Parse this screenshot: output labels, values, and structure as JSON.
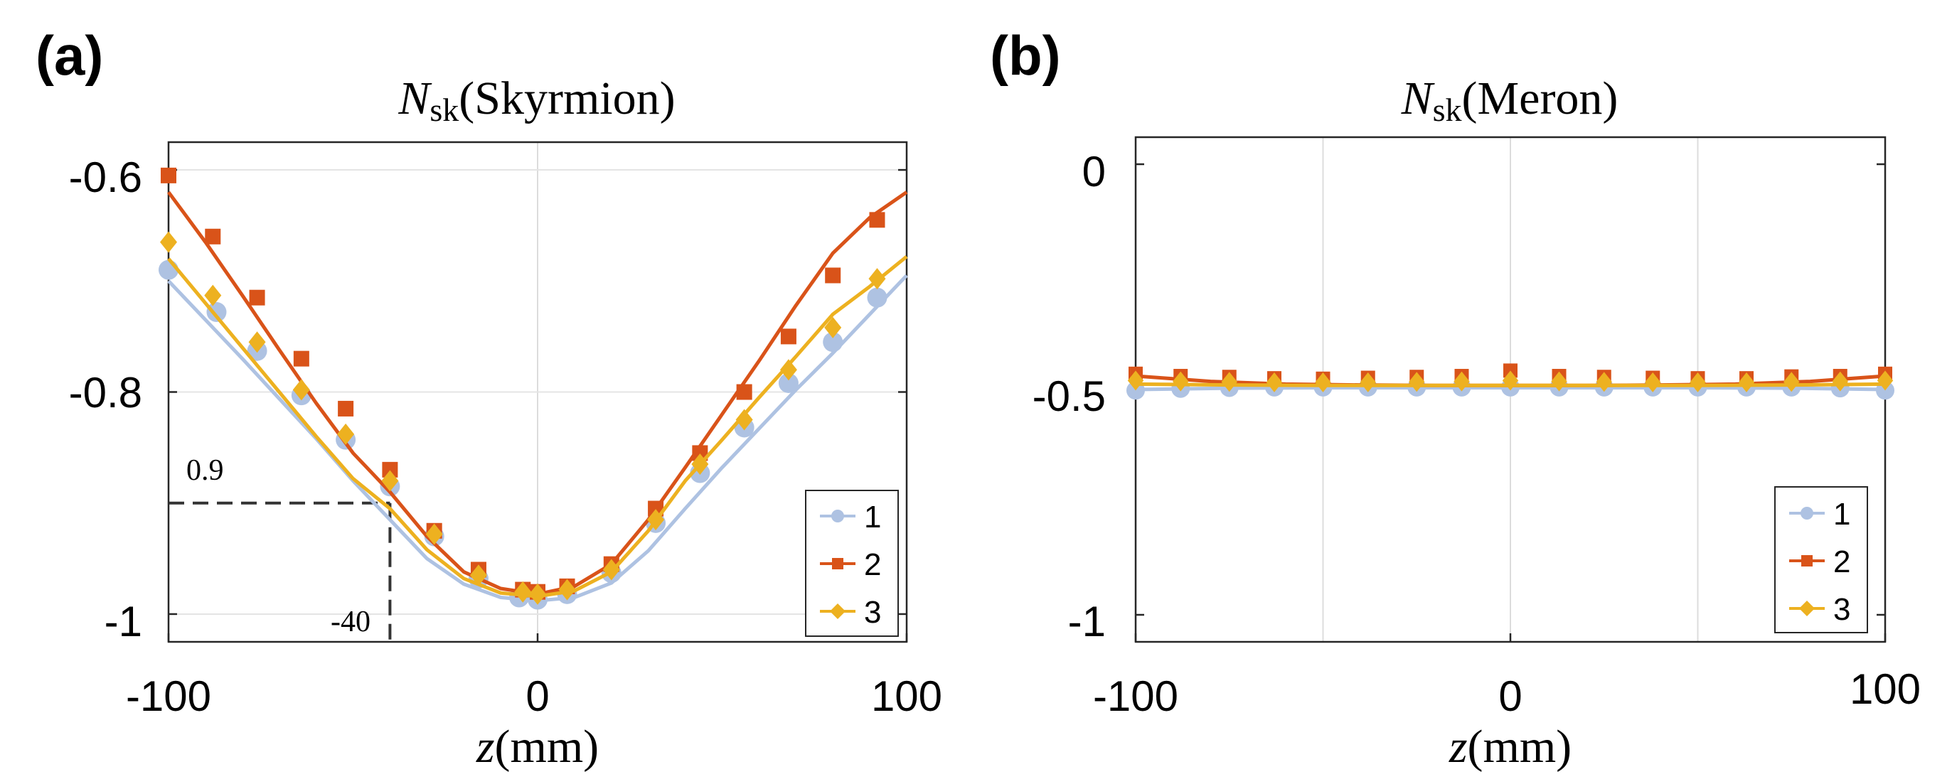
{
  "chart_data": [
    {
      "panel_label": "(a)",
      "type": "line",
      "title_symbol": "N",
      "title_subscript": "sk",
      "title_paren": "(Skyrmion)",
      "xlabel_var": "z",
      "xlabel_unit": "(mm)",
      "xlim": [
        -100,
        100
      ],
      "ylim": [
        -1.025,
        -0.575
      ],
      "xticks": [
        -100,
        0,
        100
      ],
      "xtick_labels": [
        "-100",
        "0",
        "100"
      ],
      "yticks": [
        -0.6,
        -0.8,
        -1.0
      ],
      "ytick_labels": [
        "-0.6",
        "-0.8",
        "-1"
      ],
      "grid": true,
      "legend_position": "bottom-right",
      "annotations": {
        "y_value": -0.9,
        "y_label": "0.9",
        "x_value": -40,
        "x_label": "-40"
      },
      "series": [
        {
          "name": "1",
          "color": "#aec2e2",
          "marker": "circle",
          "marker_x": [
            -100,
            -87,
            -76,
            -64,
            -52,
            -40,
            -28,
            -16,
            -5,
            0,
            8,
            20,
            32,
            44,
            56,
            68,
            80,
            92
          ],
          "marker_y": [
            -0.69,
            -0.728,
            -0.763,
            -0.803,
            -0.843,
            -0.885,
            -0.93,
            -0.968,
            -0.985,
            -0.987,
            -0.982,
            -0.963,
            -0.918,
            -0.873,
            -0.832,
            -0.792,
            -0.755,
            -0.715
          ],
          "line_x": [
            -100,
            -90,
            -80,
            -70,
            -60,
            -50,
            -40,
            -30,
            -20,
            -10,
            0,
            10,
            20,
            30,
            40,
            50,
            60,
            70,
            80,
            90,
            100
          ],
          "line_y": [
            -0.7,
            -0.735,
            -0.77,
            -0.806,
            -0.842,
            -0.88,
            -0.915,
            -0.95,
            -0.973,
            -0.985,
            -0.988,
            -0.985,
            -0.972,
            -0.943,
            -0.905,
            -0.868,
            -0.833,
            -0.798,
            -0.765,
            -0.73,
            -0.695
          ]
        },
        {
          "name": "2",
          "color": "#d95319",
          "marker": "square",
          "marker_x": [
            -100,
            -88,
            -76,
            -64,
            -52,
            -40,
            -28,
            -16,
            -4,
            0,
            8,
            20,
            32,
            44,
            56,
            68,
            80,
            92
          ],
          "marker_y": [
            -0.605,
            -0.66,
            -0.715,
            -0.77,
            -0.815,
            -0.87,
            -0.925,
            -0.96,
            -0.978,
            -0.98,
            -0.975,
            -0.955,
            -0.905,
            -0.855,
            -0.8,
            -0.75,
            -0.695,
            -0.645
          ],
          "line_x": [
            -100,
            -90,
            -80,
            -70,
            -60,
            -50,
            -40,
            -30,
            -20,
            -10,
            0,
            10,
            20,
            30,
            40,
            50,
            60,
            70,
            80,
            90,
            100
          ],
          "line_y": [
            -0.62,
            -0.665,
            -0.713,
            -0.762,
            -0.81,
            -0.855,
            -0.89,
            -0.93,
            -0.962,
            -0.977,
            -0.982,
            -0.975,
            -0.955,
            -0.915,
            -0.868,
            -0.82,
            -0.772,
            -0.722,
            -0.675,
            -0.643,
            -0.62
          ]
        },
        {
          "name": "3",
          "color": "#edb120",
          "marker": "diamond",
          "marker_x": [
            -100,
            -88,
            -76,
            -64,
            -52,
            -40,
            -28,
            -16,
            -4,
            0,
            8,
            20,
            32,
            44,
            56,
            68,
            80,
            92
          ],
          "marker_y": [
            -0.665,
            -0.713,
            -0.755,
            -0.798,
            -0.838,
            -0.88,
            -0.928,
            -0.965,
            -0.98,
            -0.982,
            -0.978,
            -0.96,
            -0.915,
            -0.865,
            -0.825,
            -0.78,
            -0.742,
            -0.698
          ],
          "line_x": [
            -100,
            -90,
            -80,
            -70,
            -60,
            -50,
            -40,
            -30,
            -20,
            -10,
            0,
            10,
            20,
            30,
            40,
            50,
            60,
            70,
            80,
            90,
            100
          ],
          "line_y": [
            -0.68,
            -0.72,
            -0.76,
            -0.8,
            -0.84,
            -0.878,
            -0.905,
            -0.942,
            -0.968,
            -0.981,
            -0.984,
            -0.979,
            -0.962,
            -0.925,
            -0.88,
            -0.843,
            -0.805,
            -0.768,
            -0.73,
            -0.705,
            -0.678
          ]
        }
      ]
    },
    {
      "panel_label": "(b)",
      "type": "line",
      "title_symbol": "N",
      "title_subscript": "sk",
      "title_paren": "(Meron)",
      "xlabel_var": "z",
      "xlabel_unit": "(mm)",
      "xlim": [
        -100,
        100
      ],
      "ylim": [
        -1.06,
        0.06
      ],
      "xticks": [
        -100,
        0,
        100
      ],
      "xtick_labels": [
        "-100",
        "0",
        "100"
      ],
      "grid_x": [
        -50,
        0,
        50
      ],
      "yticks": [
        0,
        -0.5,
        -1.0
      ],
      "ytick_labels": [
        "0",
        "-0.5",
        "-1"
      ],
      "grid": true,
      "legend_position": "bottom-right",
      "series": [
        {
          "name": "1",
          "color": "#aec2e2",
          "marker": "circle",
          "marker_x": [
            -100,
            -88,
            -75,
            -63,
            -50,
            -38,
            -25,
            -13,
            0,
            13,
            25,
            38,
            50,
            63,
            75,
            88,
            100
          ],
          "marker_y": [
            -0.502,
            -0.498,
            -0.496,
            -0.495,
            -0.495,
            -0.495,
            -0.495,
            -0.495,
            -0.495,
            -0.495,
            -0.495,
            -0.495,
            -0.495,
            -0.495,
            -0.495,
            -0.497,
            -0.502
          ],
          "line_x": [
            -100,
            -75,
            -50,
            -25,
            0,
            25,
            50,
            75,
            100
          ],
          "line_y": [
            -0.5,
            -0.497,
            -0.496,
            -0.496,
            -0.496,
            -0.496,
            -0.496,
            -0.497,
            -0.5
          ]
        },
        {
          "name": "2",
          "color": "#d95319",
          "marker": "square",
          "marker_x": [
            -100,
            -88,
            -75,
            -63,
            -50,
            -38,
            -25,
            -13,
            0,
            13,
            25,
            38,
            50,
            63,
            75,
            88,
            100
          ],
          "marker_y": [
            -0.465,
            -0.47,
            -0.472,
            -0.475,
            -0.476,
            -0.474,
            -0.472,
            -0.47,
            -0.458,
            -0.47,
            -0.472,
            -0.474,
            -0.475,
            -0.475,
            -0.471,
            -0.47,
            -0.465
          ],
          "line_x": [
            -100,
            -80,
            -60,
            -40,
            -20,
            0,
            20,
            40,
            60,
            80,
            100
          ],
          "line_y": [
            -0.47,
            -0.482,
            -0.488,
            -0.49,
            -0.491,
            -0.491,
            -0.491,
            -0.49,
            -0.488,
            -0.482,
            -0.47
          ]
        },
        {
          "name": "3",
          "color": "#edb120",
          "marker": "diamond",
          "marker_x": [
            -100,
            -88,
            -75,
            -63,
            -50,
            -38,
            -25,
            -13,
            0,
            13,
            25,
            38,
            50,
            63,
            75,
            88,
            100
          ],
          "marker_y": [
            -0.48,
            -0.482,
            -0.483,
            -0.484,
            -0.484,
            -0.484,
            -0.483,
            -0.482,
            -0.48,
            -0.482,
            -0.483,
            -0.484,
            -0.484,
            -0.484,
            -0.483,
            -0.482,
            -0.48
          ],
          "line_x": [
            -100,
            -75,
            -50,
            -25,
            0,
            25,
            50,
            75,
            100
          ],
          "line_y": [
            -0.488,
            -0.49,
            -0.491,
            -0.491,
            -0.491,
            -0.491,
            -0.491,
            -0.49,
            -0.488
          ]
        }
      ]
    }
  ]
}
